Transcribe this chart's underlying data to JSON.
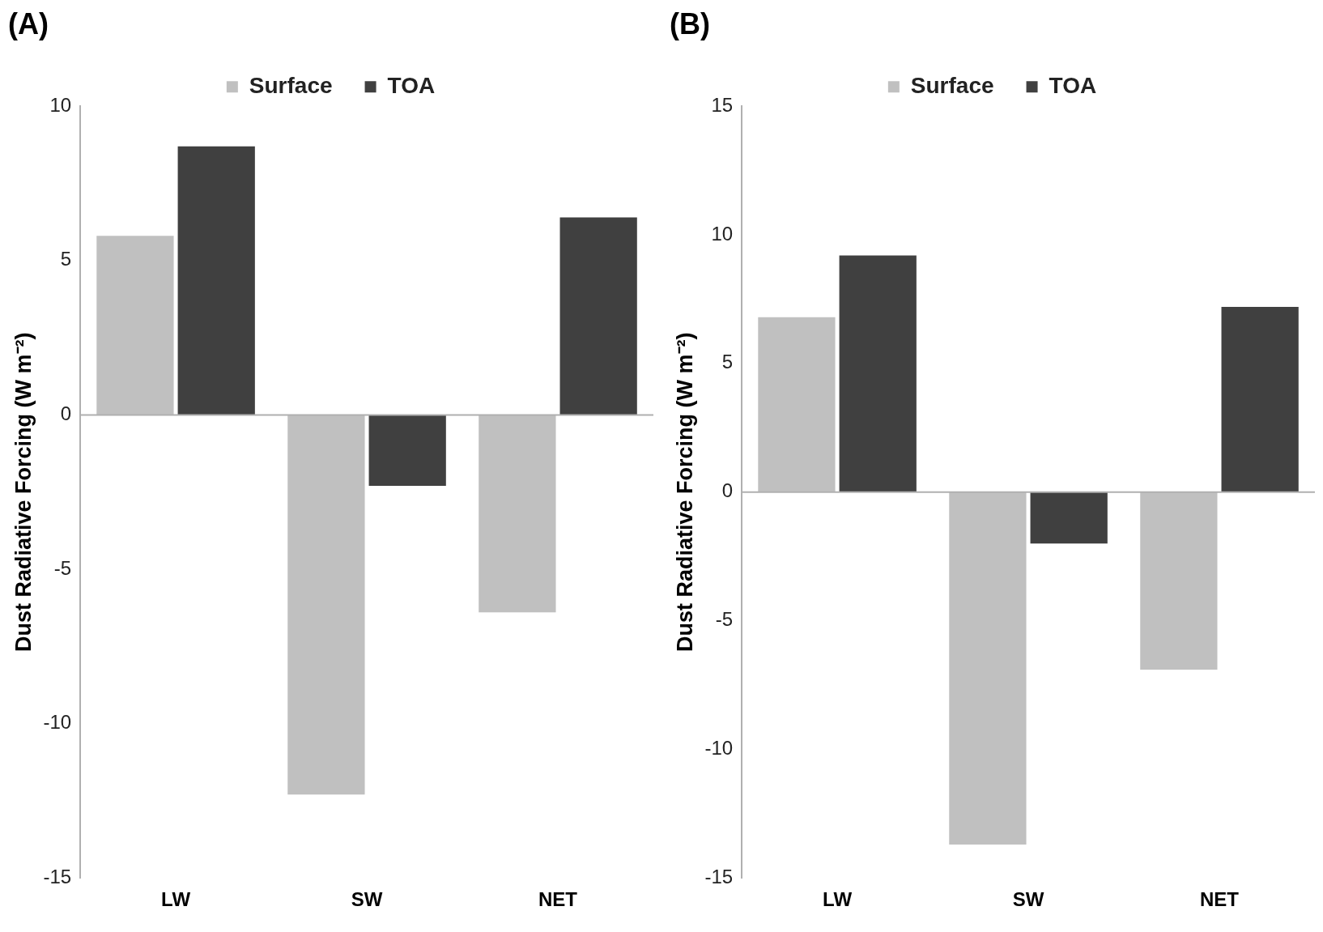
{
  "chart_data": [
    {
      "type": "bar",
      "title": "(A)",
      "ylabel": "Dust Radiative Forcing (W m⁻²)",
      "categories": [
        "LW",
        "SW",
        "NET"
      ],
      "series": [
        {
          "name": "Surface",
          "color": "#c0c0c0",
          "values": [
            5.8,
            -12.3,
            -6.4
          ]
        },
        {
          "name": "TOA",
          "color": "#404040",
          "values": [
            8.7,
            -2.3,
            6.4
          ]
        }
      ],
      "ylim": [
        -15,
        10
      ],
      "yticks": [
        -15,
        -10,
        -5,
        0,
        5,
        10
      ],
      "grid": false,
      "legend": "top",
      "ref_lines": [
        {
          "axis": "y",
          "value": 0,
          "color": "#b0b0b0"
        }
      ]
    },
    {
      "type": "bar",
      "title": "(B)",
      "ylabel": "Dust Radiative Forcing (W m⁻²)",
      "categories": [
        "LW",
        "SW",
        "NET"
      ],
      "series": [
        {
          "name": "Surface",
          "color": "#c0c0c0",
          "values": [
            6.8,
            -13.7,
            -6.9
          ]
        },
        {
          "name": "TOA",
          "color": "#404040",
          "values": [
            9.2,
            -2.0,
            7.2
          ]
        }
      ],
      "ylim": [
        -15,
        15
      ],
      "yticks": [
        -15,
        -10,
        -5,
        0,
        5,
        10,
        15
      ],
      "grid": false,
      "legend": "top",
      "ref_lines": [
        {
          "axis": "y",
          "value": 0,
          "color": "#b0b0b0"
        }
      ]
    }
  ]
}
